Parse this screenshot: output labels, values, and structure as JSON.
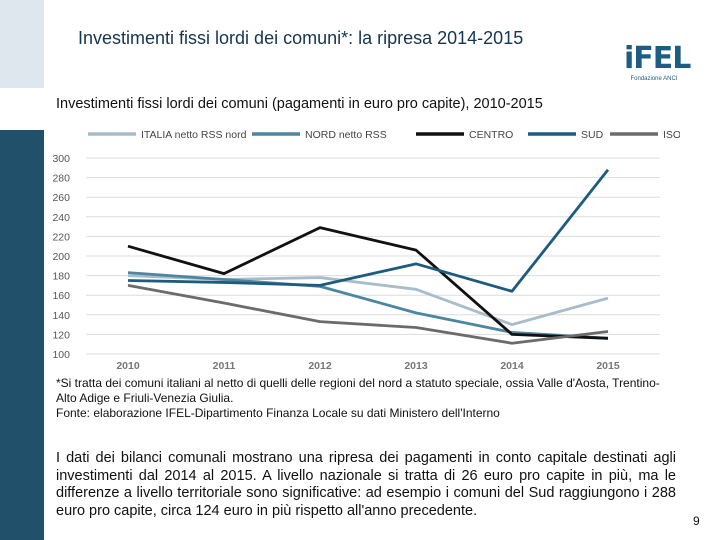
{
  "slide": {
    "title": "Investimenti fissi lordi dei comuni*: la ripresa 2014-2015",
    "logo_text": "iFEL",
    "logo_subtext": "Fondazione ANCI",
    "page_number": "9"
  },
  "chart_data": {
    "type": "line",
    "title": "Investimenti fissi lordi dei comuni (pagamenti in euro pro capite), 2010-2015",
    "xlabel": "",
    "ylabel": "",
    "x": [
      "2010",
      "2011",
      "2012",
      "2013",
      "2014",
      "2015"
    ],
    "ylim": [
      100,
      300
    ],
    "yticks": [
      "100",
      "120",
      "140",
      "160",
      "180",
      "200",
      "220",
      "240",
      "260",
      "280",
      "300"
    ],
    "grid": true,
    "legend_position": "top",
    "series": [
      {
        "name": "ITALIA netto RSS nord",
        "color": "#a9bcc9",
        "values": [
          180,
          176,
          178,
          166,
          130,
          157
        ]
      },
      {
        "name": "NORD netto RSS",
        "color": "#4d86a1",
        "values": [
          183,
          176,
          169,
          142,
          122,
          116
        ]
      },
      {
        "name": "CENTRO",
        "color": "#111111",
        "values": [
          210,
          182,
          229,
          206,
          120,
          116
        ]
      },
      {
        "name": "SUD",
        "color": "#1e5b7c",
        "values": [
          175,
          173,
          170,
          192,
          164,
          288
        ]
      },
      {
        "name": "ISOLE",
        "color": "#6b6b6b",
        "values": [
          170,
          152,
          133,
          127,
          111,
          123
        ]
      }
    ]
  },
  "footnote": {
    "line1": "*Si tratta dei comuni italiani al netto di quelli delle regioni del nord a statuto speciale, ossia Valle d'Aosta, Trentino-Alto Adige e Friuli-Venezia Giulia.",
    "line2": "Fonte: elaborazione IFEL-Dipartimento Finanza Locale su dati Ministero dell'Interno"
  },
  "paragraph": "I dati dei bilanci comunali mostrano una ripresa dei pagamenti in conto capitale destinati agli investimenti dal 2014 al 2015. A livello nazionale si tratta di 26 euro pro capite in più, ma le differenze a livello territoriale sono significative: ad esempio i comuni del Sud raggiungono i 288 euro pro capite, circa 124 euro in più rispetto all'anno precedente."
}
